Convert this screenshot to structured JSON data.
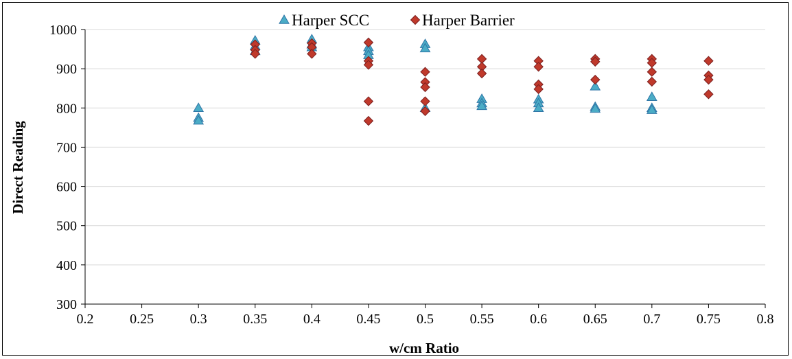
{
  "chart_data": {
    "type": "scatter",
    "xlabel": "w/cm Ratio",
    "ylabel": "Direct Reading",
    "xlim": [
      0.2,
      0.8
    ],
    "ylim": [
      300,
      1000
    ],
    "x_ticks": [
      "0.2",
      "0.25",
      "0.3",
      "0.35",
      "0.4",
      "0.45",
      "0.5",
      "0.55",
      "0.6",
      "0.65",
      "0.7",
      "0.75",
      "0.8"
    ],
    "y_ticks": [
      "300",
      "400",
      "500",
      "600",
      "700",
      "800",
      "900",
      "1000"
    ],
    "grid": "horizontal",
    "legend": "top-center",
    "series": [
      {
        "name": "Harper SCC",
        "marker": "triangle",
        "color": "#4BACC6",
        "edge_color": "#2E75A6",
        "points": [
          [
            0.3,
            800
          ],
          [
            0.3,
            775
          ],
          [
            0.3,
            768
          ],
          [
            0.35,
            972
          ],
          [
            0.35,
            958
          ],
          [
            0.35,
            945
          ],
          [
            0.4,
            975
          ],
          [
            0.4,
            962
          ],
          [
            0.4,
            955
          ],
          [
            0.45,
            955
          ],
          [
            0.45,
            945
          ],
          [
            0.45,
            935
          ],
          [
            0.5,
            963
          ],
          [
            0.5,
            952
          ],
          [
            0.5,
            800
          ],
          [
            0.55,
            823
          ],
          [
            0.55,
            812
          ],
          [
            0.55,
            805
          ],
          [
            0.6,
            822
          ],
          [
            0.6,
            812
          ],
          [
            0.6,
            800
          ],
          [
            0.65,
            855
          ],
          [
            0.65,
            803
          ],
          [
            0.65,
            798
          ],
          [
            0.7,
            828
          ],
          [
            0.7,
            800
          ],
          [
            0.7,
            795
          ]
        ]
      },
      {
        "name": "Harper Barrier",
        "marker": "diamond",
        "color": "#C0392B",
        "edge_color": "#7B1F1F",
        "points": [
          [
            0.35,
            962
          ],
          [
            0.35,
            948
          ],
          [
            0.35,
            938
          ],
          [
            0.4,
            965
          ],
          [
            0.4,
            955
          ],
          [
            0.4,
            938
          ],
          [
            0.45,
            967
          ],
          [
            0.45,
            920
          ],
          [
            0.45,
            910
          ],
          [
            0.45,
            817
          ],
          [
            0.45,
            767
          ],
          [
            0.5,
            892
          ],
          [
            0.5,
            866
          ],
          [
            0.5,
            853
          ],
          [
            0.5,
            817
          ],
          [
            0.5,
            792
          ],
          [
            0.55,
            925
          ],
          [
            0.55,
            905
          ],
          [
            0.55,
            888
          ],
          [
            0.6,
            920
          ],
          [
            0.6,
            905
          ],
          [
            0.6,
            860
          ],
          [
            0.6,
            848
          ],
          [
            0.65,
            925
          ],
          [
            0.65,
            918
          ],
          [
            0.65,
            872
          ],
          [
            0.7,
            925
          ],
          [
            0.7,
            915
          ],
          [
            0.7,
            892
          ],
          [
            0.7,
            867
          ],
          [
            0.75,
            920
          ],
          [
            0.75,
            883
          ],
          [
            0.75,
            872
          ],
          [
            0.75,
            835
          ]
        ]
      }
    ]
  }
}
